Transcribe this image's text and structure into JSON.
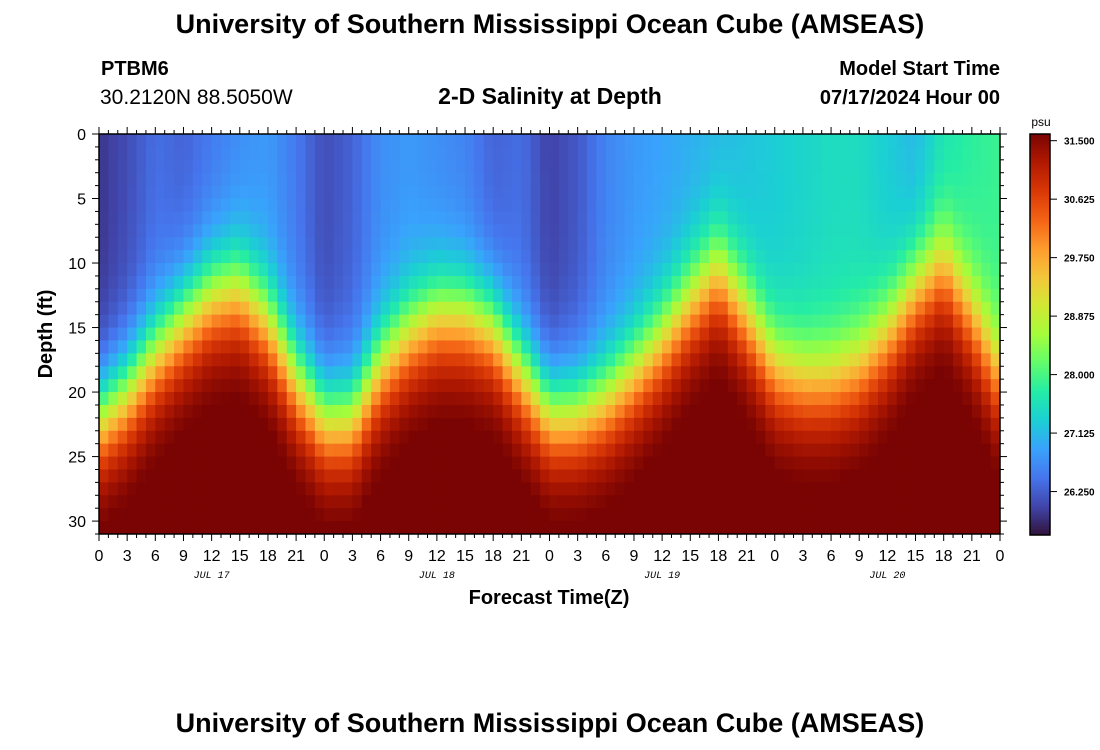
{
  "page_title": "University of Southern Mississippi Ocean Cube (AMSEAS)",
  "footer_title": "University of Southern Mississippi Ocean Cube (AMSEAS)",
  "station": {
    "id": "PTBM6",
    "coords": "30.2120N  88.5050W"
  },
  "subtitle": "2-D Salinity at Depth",
  "model_start": {
    "label": "Model Start Time",
    "value": "07/17/2024 Hour 00"
  },
  "colors": {
    "scale": [
      "#30123b",
      "#4145ab",
      "#4675ed",
      "#39a2fc",
      "#1bcfd4",
      "#24eca6",
      "#61fc6c",
      "#a4fc3b",
      "#d1e834",
      "#f3c63a",
      "#fe9b2d",
      "#f36315",
      "#d93806",
      "#b11901",
      "#7a0403"
    ],
    "axis": "#000000"
  },
  "chart_data": {
    "type": "heatmap",
    "title": "2-D Salinity at Depth",
    "xlabel": "Forecast Time(Z)",
    "ylabel": "Depth (ft)",
    "x_unit": "hours since 07/17/2024 00Z",
    "xlim": [
      0,
      96
    ],
    "ylim": [
      0,
      31
    ],
    "x_ticks": [
      0,
      3,
      6,
      9,
      12,
      15,
      18,
      21,
      24,
      27,
      30,
      33,
      36,
      39,
      42,
      45,
      48,
      51,
      54,
      57,
      60,
      63,
      66,
      69,
      72,
      75,
      78,
      81,
      84,
      87,
      90,
      93,
      96
    ],
    "x_tick_labels": [
      "0",
      "3",
      "6",
      "9",
      "12",
      "15",
      "18",
      "21",
      "0",
      "3",
      "6",
      "9",
      "12",
      "15",
      "18",
      "21",
      "0",
      "3",
      "6",
      "9",
      "12",
      "15",
      "18",
      "21",
      "0",
      "3",
      "6",
      "9",
      "12",
      "15",
      "18",
      "21",
      "0"
    ],
    "date_labels": [
      {
        "x": 12,
        "text": "JUL 17"
      },
      {
        "x": 36,
        "text": "JUL 18"
      },
      {
        "x": 60,
        "text": "JUL 19"
      },
      {
        "x": 84,
        "text": "JUL 20"
      }
    ],
    "y_ticks": [
      0,
      5,
      10,
      15,
      20,
      25,
      30
    ],
    "y_tick_labels": [
      "0",
      "5",
      "10",
      "15",
      "20",
      "25",
      "30"
    ],
    "colorbar": {
      "unit": "psu",
      "range": [
        25.6,
        31.6
      ],
      "ticks": [
        31.5,
        30.625,
        29.75,
        28.875,
        28.0,
        27.125,
        26.25
      ],
      "tick_labels": [
        "31.500",
        "30.625",
        "29.750",
        "28.875",
        "28.000",
        "27.125",
        "26.250"
      ]
    },
    "halocline_depth_ft": {
      "hours": [
        0,
        3,
        6,
        9,
        12,
        15,
        18,
        21,
        24,
        27,
        30,
        33,
        36,
        39,
        42,
        45,
        48,
        51,
        54,
        57,
        60,
        63,
        66,
        69,
        72,
        75,
        78,
        81,
        84,
        87,
        90,
        93,
        96
      ],
      "depth": [
        22,
        20,
        17,
        14.5,
        12.5,
        12,
        14.5,
        19,
        22,
        22,
        18,
        15.5,
        14,
        14,
        15,
        18.5,
        21.5,
        21.5,
        20.5,
        18.5,
        16,
        13,
        10.5,
        14,
        18,
        19,
        19,
        18,
        15.5,
        12,
        10,
        14,
        19
      ]
    },
    "surface_salinity_psu": {
      "hours": [
        0,
        3,
        6,
        9,
        12,
        15,
        18,
        21,
        24,
        27,
        30,
        33,
        36,
        39,
        42,
        45,
        48,
        51,
        54,
        57,
        60,
        63,
        66,
        69,
        72,
        75,
        78,
        81,
        84,
        87,
        90,
        93,
        96
      ],
      "value": [
        25.9,
        26.1,
        26.4,
        26.3,
        26.5,
        26.7,
        26.8,
        26.5,
        26.1,
        26.3,
        26.7,
        26.8,
        26.7,
        26.6,
        26.3,
        26.4,
        26.0,
        26.2,
        26.6,
        26.8,
        26.9,
        27.0,
        27.1,
        27.2,
        27.3,
        27.4,
        27.5,
        27.5,
        27.3,
        27.1,
        27.6,
        27.8,
        27.9
      ]
    },
    "bottom_salinity_psu": 31.5
  }
}
